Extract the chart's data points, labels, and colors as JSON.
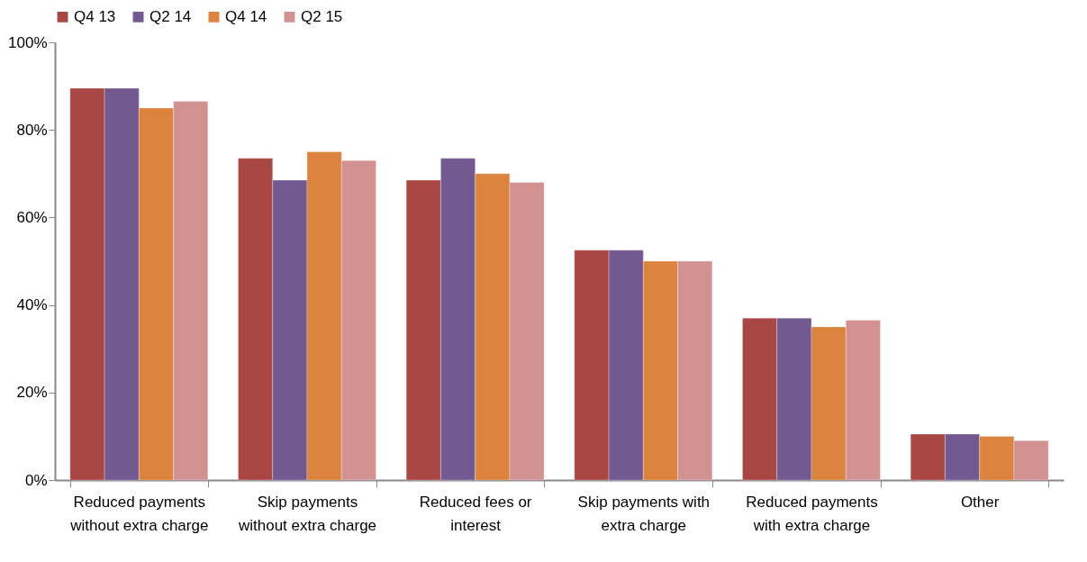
{
  "chart_data": {
    "type": "bar",
    "categories": [
      "Reduced payments without extra charge",
      "Skip payments without extra charge",
      "Reduced fees or interest",
      "Skip payments with extra charge",
      "Reduced payments with extra charge",
      "Other"
    ],
    "series": [
      {
        "name": "Q4 13",
        "color": "#a94745",
        "values": [
          89.5,
          73.5,
          68.5,
          52.5,
          37,
          10.5
        ]
      },
      {
        "name": "Q2 14",
        "color": "#72598f",
        "values": [
          89.5,
          68.5,
          73.5,
          52.5,
          37,
          10.5
        ]
      },
      {
        "name": "Q4 14",
        "color": "#db833f",
        "values": [
          85,
          75,
          70,
          50,
          35,
          10
        ]
      },
      {
        "name": "Q2 15",
        "color": "#d39292",
        "values": [
          86.5,
          73,
          68,
          50,
          36.5,
          9
        ]
      }
    ],
    "ylim": [
      0,
      100
    ],
    "yticks": [
      {
        "value": 0,
        "label": "0%"
      },
      {
        "value": 20,
        "label": "20%"
      },
      {
        "value": 40,
        "label": "40%"
      },
      {
        "value": 60,
        "label": "60%"
      },
      {
        "value": 80,
        "label": "80%"
      },
      {
        "value": 100,
        "label": "100%"
      }
    ],
    "grid": false,
    "legend": "top"
  }
}
